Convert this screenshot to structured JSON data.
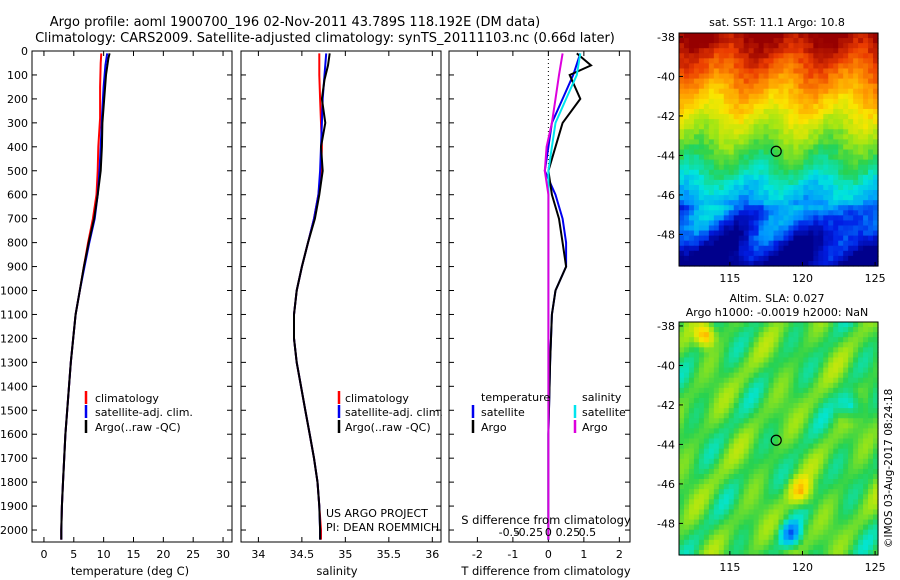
{
  "header": {
    "line1": "Argo profile: aoml 1900700_196 02-Nov-2011 43.789S 118.192E (DM data)",
    "line2": "Climatology: CARS2009. Satellite-adjusted climatology: synTS_20111103.nc (0.66d later)"
  },
  "colors": {
    "climatology": "#ff0000",
    "satellite": "#0000ee",
    "argo": "#000000",
    "sal_sat": "#00e5ee",
    "sal_argo": "#dd00dd"
  },
  "footer": {
    "project": "US ARGO PROJECT",
    "pi": "PI: DEAN ROEMMICH",
    "watermark": "©IMOS 03-Aug-2017 08:24:18"
  },
  "chart_data": [
    {
      "type": "line",
      "xlabel": "temperature (deg C)",
      "ylabel": "",
      "xlim": [
        -2,
        31.5
      ],
      "ylim": [
        2050,
        0
      ],
      "xticks": [
        "0",
        "5",
        "10",
        "15",
        "20",
        "25",
        "30"
      ],
      "yticks": [
        "0",
        "100",
        "200",
        "300",
        "400",
        "500",
        "600",
        "700",
        "800",
        "900",
        "1000",
        "1100",
        "1200",
        "1300",
        "1400",
        "1500",
        "1600",
        "1700",
        "1800",
        "1900",
        "2000"
      ],
      "legend": [
        "climatology",
        "satellite-adj. clim.",
        "Argo(..raw -QC)"
      ],
      "series": [
        {
          "name": "climatology",
          "color": "#ff0000",
          "points": [
            [
              9.6,
              10
            ],
            [
              9.5,
              50
            ],
            [
              9.4,
              150
            ],
            [
              9.4,
              280
            ],
            [
              9.1,
              400
            ],
            [
              9.0,
              500
            ],
            [
              8.8,
              600
            ],
            [
              8.2,
              700
            ],
            [
              7.4,
              800
            ],
            [
              6.7,
              900
            ],
            [
              6.0,
              1000
            ],
            [
              5.3,
              1100
            ],
            [
              4.9,
              1200
            ],
            [
              4.5,
              1300
            ],
            [
              4.2,
              1400
            ],
            [
              3.9,
              1500
            ],
            [
              3.6,
              1600
            ],
            [
              3.4,
              1700
            ],
            [
              3.2,
              1800
            ],
            [
              3.0,
              1900
            ],
            [
              2.9,
              2000
            ],
            [
              2.9,
              2040
            ]
          ]
        },
        {
          "name": "satellite-adj. clim.",
          "color": "#0000ee",
          "points": [
            [
              10.6,
              10
            ],
            [
              10.3,
              60
            ],
            [
              10.0,
              150
            ],
            [
              9.7,
              280
            ],
            [
              9.5,
              400
            ],
            [
              9.3,
              500
            ],
            [
              9.0,
              600
            ],
            [
              8.5,
              700
            ],
            [
              7.6,
              800
            ],
            [
              6.8,
              900
            ],
            [
              6.0,
              1000
            ],
            [
              5.3,
              1100
            ],
            [
              4.9,
              1200
            ],
            [
              4.5,
              1300
            ],
            [
              4.2,
              1400
            ],
            [
              3.9,
              1500
            ],
            [
              3.6,
              1600
            ],
            [
              3.4,
              1700
            ],
            [
              3.2,
              1800
            ],
            [
              3.0,
              1900
            ],
            [
              2.9,
              2000
            ],
            [
              2.9,
              2040
            ]
          ]
        },
        {
          "name": "Argo(..raw -QC)",
          "color": "#000000",
          "points": [
            [
              11.0,
              10
            ],
            [
              10.8,
              30
            ],
            [
              10.4,
              100
            ],
            [
              10.1,
              200
            ],
            [
              9.8,
              300
            ],
            [
              9.7,
              400
            ],
            [
              9.5,
              500
            ],
            [
              9.0,
              600
            ],
            [
              8.4,
              700
            ],
            [
              7.5,
              800
            ],
            [
              6.7,
              900
            ],
            [
              6.0,
              1000
            ],
            [
              5.3,
              1100
            ],
            [
              4.9,
              1200
            ],
            [
              4.5,
              1300
            ],
            [
              4.2,
              1400
            ],
            [
              3.9,
              1500
            ],
            [
              3.6,
              1600
            ],
            [
              3.4,
              1700
            ],
            [
              3.2,
              1800
            ],
            [
              3.0,
              1900
            ],
            [
              2.9,
              2000
            ],
            [
              2.9,
              2040
            ]
          ]
        }
      ]
    },
    {
      "type": "line",
      "xlabel": "salinity",
      "ylabel": "",
      "xlim": [
        33.8,
        36.1
      ],
      "ylim": [
        2050,
        0
      ],
      "xticks": [
        "34",
        "34.5",
        "35",
        "35.5",
        "36"
      ],
      "legend": [
        "climatology",
        "satellite-adj. clim.",
        "Argo(..raw -QC)"
      ],
      "series": [
        {
          "name": "climatology",
          "color": "#ff0000",
          "points": [
            [
              34.7,
              10
            ],
            [
              34.7,
              100
            ],
            [
              34.71,
              200
            ],
            [
              34.72,
              300
            ],
            [
              34.73,
              400
            ],
            [
              34.72,
              500
            ],
            [
              34.69,
              600
            ],
            [
              34.64,
              700
            ],
            [
              34.57,
              800
            ],
            [
              34.5,
              900
            ],
            [
              34.44,
              1000
            ],
            [
              34.41,
              1100
            ],
            [
              34.41,
              1200
            ],
            [
              34.44,
              1300
            ],
            [
              34.49,
              1400
            ],
            [
              34.54,
              1500
            ],
            [
              34.59,
              1600
            ],
            [
              34.64,
              1700
            ],
            [
              34.68,
              1800
            ],
            [
              34.7,
              1900
            ],
            [
              34.72,
              2000
            ],
            [
              34.72,
              2040
            ]
          ]
        },
        {
          "name": "satellite-adj. clim.",
          "color": "#0000ee",
          "points": [
            [
              34.78,
              10
            ],
            [
              34.76,
              100
            ],
            [
              34.74,
              200
            ],
            [
              34.73,
              300
            ],
            [
              34.72,
              400
            ],
            [
              34.71,
              500
            ],
            [
              34.69,
              600
            ],
            [
              34.64,
              700
            ],
            [
              34.57,
              800
            ],
            [
              34.5,
              900
            ],
            [
              34.44,
              1000
            ],
            [
              34.41,
              1100
            ],
            [
              34.41,
              1200
            ],
            [
              34.44,
              1300
            ],
            [
              34.49,
              1400
            ],
            [
              34.54,
              1500
            ],
            [
              34.59,
              1600
            ],
            [
              34.64,
              1700
            ],
            [
              34.68,
              1800
            ],
            [
              34.7,
              1900
            ],
            [
              34.71,
              2000
            ],
            [
              34.71,
              2040
            ]
          ]
        },
        {
          "name": "Argo(..raw -QC)",
          "color": "#000000",
          "points": [
            [
              34.82,
              10
            ],
            [
              34.8,
              60
            ],
            [
              34.76,
              120
            ],
            [
              34.73,
              200
            ],
            [
              34.77,
              300
            ],
            [
              34.72,
              400
            ],
            [
              34.74,
              500
            ],
            [
              34.7,
              600
            ],
            [
              34.65,
              700
            ],
            [
              34.57,
              800
            ],
            [
              34.5,
              900
            ],
            [
              34.44,
              1000
            ],
            [
              34.41,
              1100
            ],
            [
              34.41,
              1200
            ],
            [
              34.44,
              1300
            ],
            [
              34.49,
              1400
            ],
            [
              34.54,
              1500
            ],
            [
              34.59,
              1600
            ],
            [
              34.64,
              1700
            ],
            [
              34.68,
              1800
            ],
            [
              34.7,
              1900
            ],
            [
              34.71,
              2000
            ],
            [
              34.71,
              2040
            ]
          ]
        }
      ]
    },
    {
      "type": "line",
      "xlabel": "T difference from climatology",
      "ylabel": "",
      "xlim": [
        -2.8,
        2.3
      ],
      "ylim": [
        2050,
        0
      ],
      "xticks": [
        "-2",
        "-1",
        "0",
        "1",
        "2"
      ],
      "top_label": "S difference from climatology",
      "top_ticks": [
        "-0.5",
        "-0.25",
        "0",
        "0.25",
        "0.5"
      ],
      "legend_temperature_title": "temperature",
      "legend_salinity_title": "salinity",
      "legend": [
        "satellite",
        "Argo",
        "satellite",
        "Argo"
      ],
      "series": [
        {
          "name": "satellite",
          "color": "#0000ee",
          "points": [
            [
              0.9,
              10
            ],
            [
              0.7,
              100
            ],
            [
              0.4,
              200
            ],
            [
              0.1,
              300
            ],
            [
              0.0,
              400
            ],
            [
              -0.1,
              500
            ],
            [
              0.2,
              600
            ],
            [
              0.4,
              700
            ],
            [
              0.5,
              800
            ],
            [
              0.5,
              900
            ],
            [
              0.2,
              1000
            ],
            [
              0.1,
              1100
            ],
            [
              0.05,
              1300
            ],
            [
              0.0,
              1600
            ],
            [
              0.0,
              2040
            ]
          ]
        },
        {
          "name": "Argo",
          "color": "#000000",
          "points": [
            [
              0.8,
              10
            ],
            [
              1.2,
              60
            ],
            [
              0.6,
              100
            ],
            [
              0.9,
              200
            ],
            [
              0.4,
              300
            ],
            [
              0.2,
              400
            ],
            [
              0.0,
              500
            ],
            [
              0.1,
              600
            ],
            [
              0.3,
              700
            ],
            [
              0.4,
              800
            ],
            [
              0.5,
              900
            ],
            [
              0.2,
              1000
            ],
            [
              0.1,
              1100
            ],
            [
              0.05,
              1300
            ],
            [
              0.0,
              1600
            ],
            [
              0.0,
              2040
            ]
          ]
        },
        {
          "name": "satellite",
          "color": "#00e5ee",
          "points": [
            [
              0.9,
              10
            ],
            [
              0.8,
              100
            ],
            [
              0.5,
              200
            ],
            [
              0.2,
              300
            ],
            [
              0.1,
              400
            ],
            [
              0.0,
              500
            ],
            [
              0.0,
              700
            ],
            [
              0.0,
              1000
            ],
            [
              0.0,
              2040
            ]
          ]
        },
        {
          "name": "Argo",
          "color": "#dd00dd",
          "points": [
            [
              0.4,
              10
            ],
            [
              0.3,
              100
            ],
            [
              0.2,
              200
            ],
            [
              0.1,
              300
            ],
            [
              -0.05,
              400
            ],
            [
              -0.1,
              500
            ],
            [
              0.0,
              600
            ],
            [
              0.0,
              800
            ],
            [
              0.0,
              1000
            ],
            [
              0.0,
              2040
            ]
          ]
        }
      ]
    },
    {
      "type": "heatmap",
      "title": "sat. SST: 11.1  Argo: 10.8",
      "xlim": [
        111.5,
        125.2
      ],
      "ylim": [
        -49.6,
        -37.8
      ],
      "xticks": [
        "115",
        "120",
        "125"
      ],
      "yticks": [
        "-38",
        "-40",
        "-42",
        "-44",
        "-46",
        "-48"
      ],
      "marker": [
        118.192,
        -43.789
      ]
    },
    {
      "type": "heatmap",
      "title_line1": "Altim. SLA: 0.027",
      "title_line2": "Argo h1000: -0.0019 h2000: NaN",
      "xlim": [
        111.5,
        125.2
      ],
      "ylim": [
        -49.6,
        -37.8
      ],
      "xticks": [
        "115",
        "120",
        "125"
      ],
      "yticks": [
        "-38",
        "-40",
        "-42",
        "-44",
        "-46",
        "-48"
      ],
      "marker": [
        118.192,
        -43.789
      ]
    }
  ]
}
